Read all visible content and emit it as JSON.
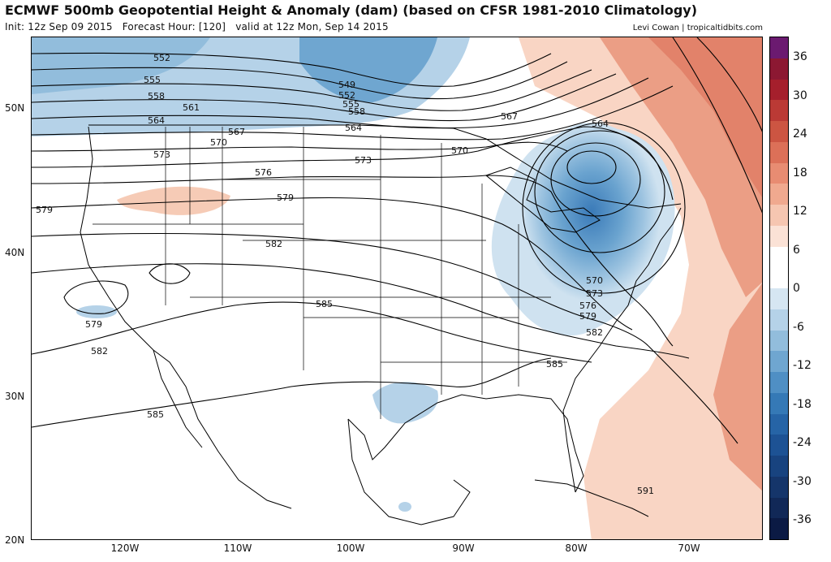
{
  "header": {
    "title": "ECMWF 500mb Geopotential Height & Anomaly (dam) (based on CFSR 1981-2010 Climatology)",
    "init": "Init: 12z Sep 09 2015",
    "forecast_hour": "Forecast Hour: [120]",
    "valid": "valid at 12z Mon, Sep 14 2015",
    "credit": "Levi Cowan | tropicaltidbits.com"
  },
  "axes": {
    "lat_labels": [
      "50N",
      "40N",
      "30N",
      "20N"
    ],
    "lon_labels": [
      "120W",
      "110W",
      "100W",
      "90W",
      "80W",
      "70W"
    ]
  },
  "colorbar": {
    "labels": [
      "36",
      "30",
      "24",
      "18",
      "12",
      "6",
      "0",
      "-6",
      "-12",
      "-18",
      "-24",
      "-30",
      "-36"
    ],
    "colors": [
      "#6b1a70",
      "#8c1832",
      "#a51f2c",
      "#bb3a35",
      "#cc5542",
      "#dc7058",
      "#e88c72",
      "#f0a98f",
      "#f6c6b1",
      "#fbe2d6",
      "#ffffff",
      "#ffffff",
      "#d6e6f2",
      "#b5d2e8",
      "#92bddc",
      "#6fa6d0",
      "#4f8fc4",
      "#3579b6",
      "#2664a6",
      "#1d5294",
      "#18437f",
      "#15356a",
      "#112857",
      "#0b1a44"
    ]
  },
  "contour_labels": {
    "northwest": [
      "552",
      "555",
      "558",
      "561",
      "564",
      "567",
      "570",
      "573",
      "576",
      "579"
    ],
    "trough_north": [
      "549",
      "552",
      "555",
      "558",
      "564"
    ],
    "great_lakes": [
      "567",
      "570",
      "573",
      "564",
      "579",
      "582"
    ],
    "east_coast": [
      "570",
      "573",
      "576",
      "579",
      "582",
      "585"
    ],
    "south": [
      "579",
      "582",
      "585",
      "585",
      "591"
    ]
  },
  "legend": {
    "units": "dam"
  }
}
